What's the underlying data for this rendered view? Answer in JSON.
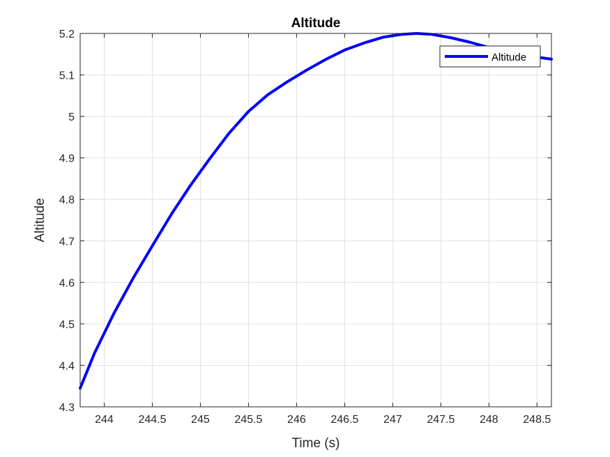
{
  "chart_data": {
    "type": "line",
    "title": "Altitude",
    "xlabel": "Time (s)",
    "ylabel": "Altitude",
    "xlim": [
      243.75,
      248.65
    ],
    "ylim": [
      4.3,
      5.2
    ],
    "x_ticks": [
      244,
      244.5,
      245,
      245.5,
      246,
      246.5,
      247,
      247.5,
      248,
      248.5
    ],
    "x_tick_labels": [
      "244",
      "244.5",
      "245",
      "245.5",
      "246",
      "246.5",
      "247",
      "247.5",
      "248",
      "248.5"
    ],
    "y_ticks": [
      4.3,
      4.4,
      4.5,
      4.6,
      4.7,
      4.8,
      4.9,
      5.0,
      5.1,
      5.2
    ],
    "y_tick_labels": [
      "4.3",
      "4.4",
      "4.5",
      "4.6",
      "4.7",
      "4.8",
      "4.9",
      "5",
      "5.1",
      "5.2"
    ],
    "grid": true,
    "legend_position": "top-right",
    "series": [
      {
        "name": "Altitude",
        "color": "#0000ff",
        "x": [
          243.75,
          243.9,
          244.1,
          244.3,
          244.5,
          244.7,
          244.9,
          245.1,
          245.3,
          245.5,
          245.7,
          245.9,
          246.1,
          246.3,
          246.5,
          246.7,
          246.9,
          247.1,
          247.25,
          247.4,
          247.6,
          247.8,
          248.0,
          248.2,
          248.4,
          248.65
        ],
        "y": [
          4.345,
          4.43,
          4.525,
          4.61,
          4.688,
          4.765,
          4.835,
          4.899,
          4.96,
          5.012,
          5.052,
          5.083,
          5.111,
          5.137,
          5.16,
          5.177,
          5.191,
          5.198,
          5.2,
          5.198,
          5.19,
          5.179,
          5.166,
          5.155,
          5.146,
          5.138
        ]
      }
    ]
  }
}
